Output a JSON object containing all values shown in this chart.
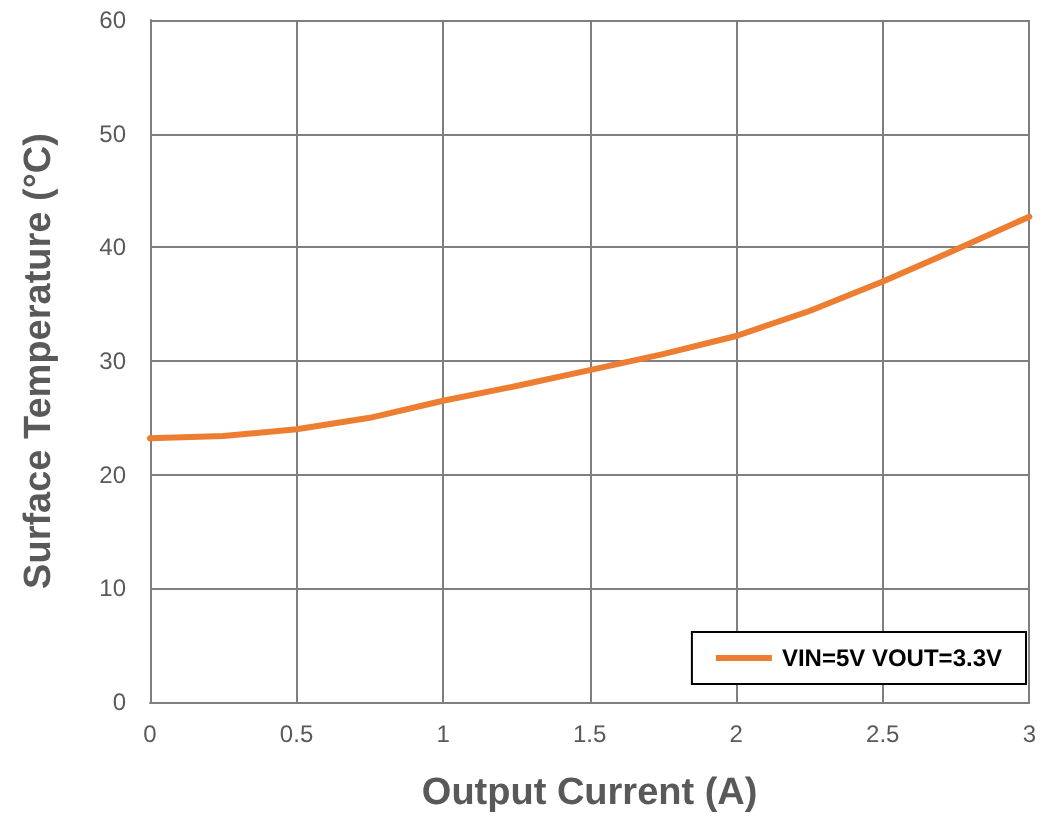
{
  "chart_data": {
    "type": "line",
    "xlabel": "Output Current (A)",
    "ylabel": "Surface Temperature (°C)",
    "x": [
      0,
      0.25,
      0.5,
      0.75,
      1,
      1.25,
      1.5,
      1.75,
      2,
      2.25,
      2.5,
      2.75,
      3
    ],
    "series": [
      {
        "name": "VIN=5V VOUT=3.3V",
        "color": "#ed7d31",
        "values": [
          23.2,
          23.4,
          24,
          25,
          26.5,
          27.8,
          29.2,
          30.6,
          32.2,
          34.4,
          37,
          39.8,
          42.7
        ]
      }
    ],
    "xlim": [
      0,
      3
    ],
    "xticks": [
      0,
      0.5,
      1,
      1.5,
      2,
      2.5,
      3
    ],
    "ylim": [
      0,
      60
    ],
    "yticks": [
      0,
      10,
      20,
      30,
      40,
      50,
      60
    ],
    "grid": true,
    "legend": "bottom right",
    "marker": "none",
    "line_style": "solid"
  }
}
